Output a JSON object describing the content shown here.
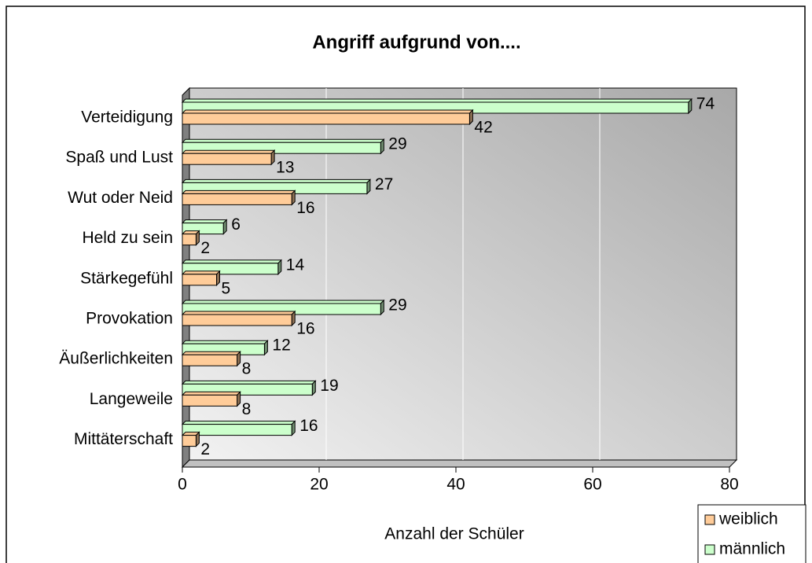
{
  "chart_data": {
    "type": "bar",
    "orientation": "horizontal",
    "title": "Angriff aufgrund von....",
    "xlabel": "Anzahl der Schüler",
    "categories": [
      "Verteidigung",
      "Spaß und Lust",
      "Wut oder Neid",
      "Held zu sein",
      "Stärkegefühl",
      "Provokation",
      "Äußerlichkeiten",
      "Langeweile",
      "Mittäterschaft"
    ],
    "series": [
      {
        "name": "weiblich",
        "color": "#ffcc99",
        "values": [
          42,
          13,
          16,
          2,
          5,
          16,
          8,
          8,
          2
        ]
      },
      {
        "name": "männlich",
        "color": "#ccffcc",
        "values": [
          74,
          29,
          27,
          6,
          14,
          29,
          12,
          19,
          16
        ]
      }
    ],
    "xlim": [
      0,
      80
    ],
    "xticks": [
      0,
      20,
      40,
      60,
      80
    ],
    "grid": true,
    "legend": "lower right"
  }
}
